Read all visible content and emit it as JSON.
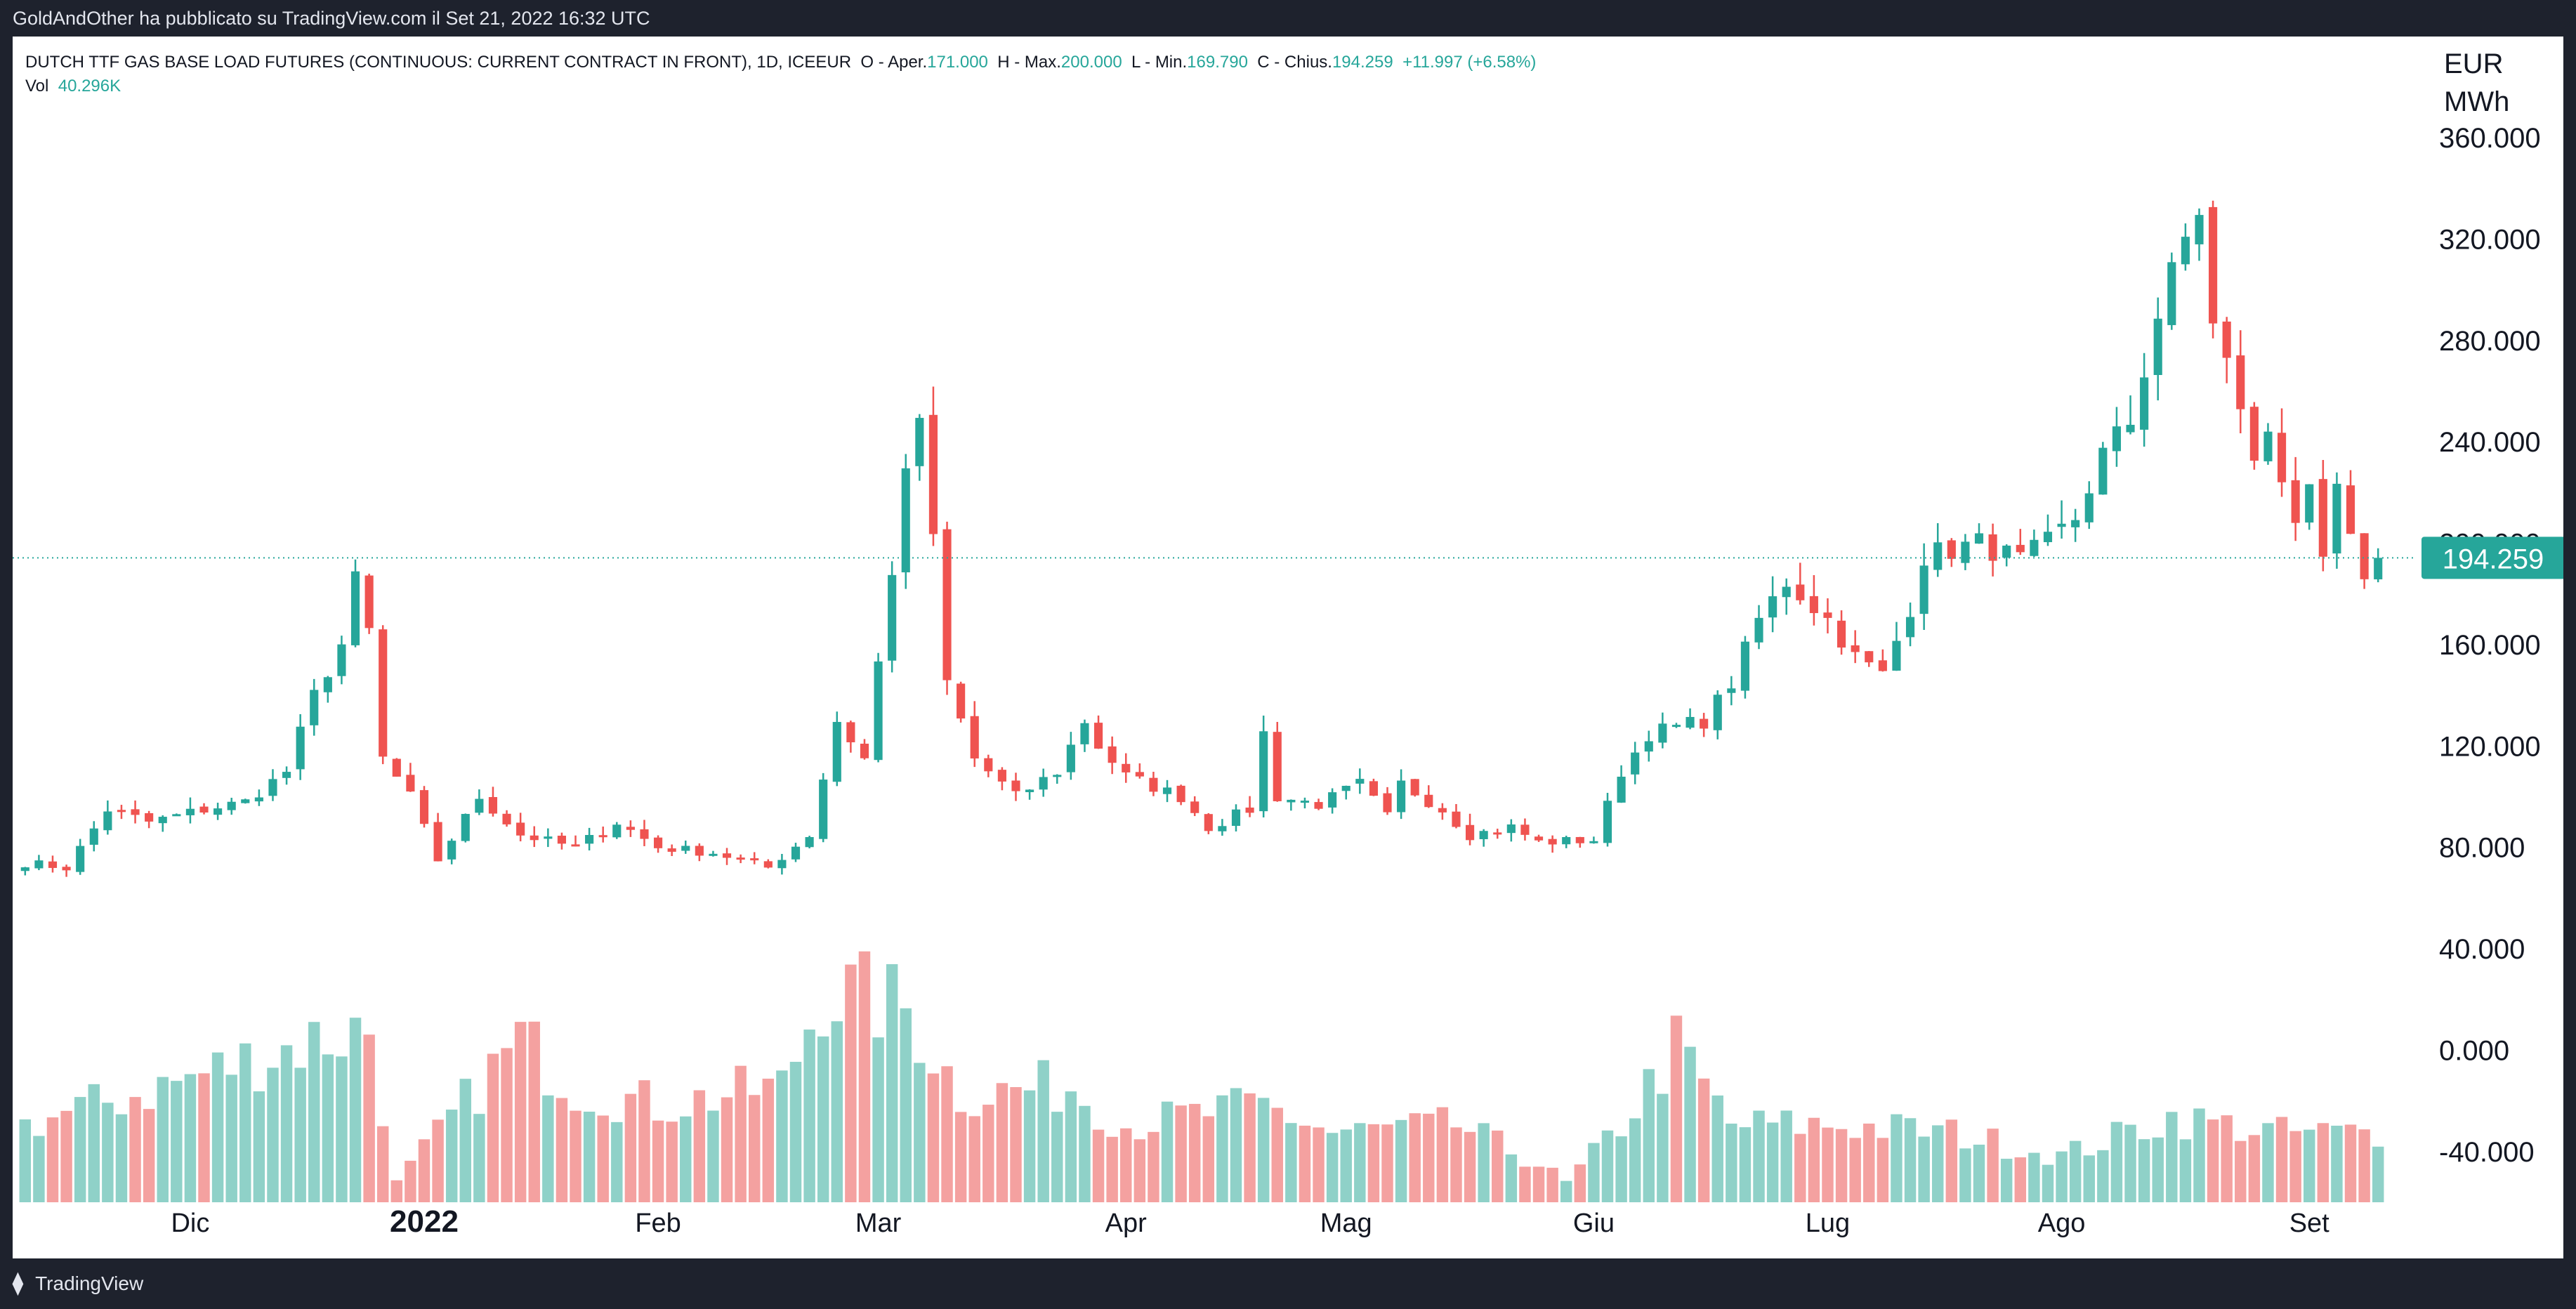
{
  "header": {
    "published_by": "GoldAndOther ha pubblicato su TradingView.com il Set 21, 2022 16:32 UTC"
  },
  "footer": {
    "logo_glyph": "⧫",
    "brand": "TradingView"
  },
  "legend": {
    "symbol": "DUTCH TTF GAS BASE LOAD FUTURES (CONTINUOUS: CURRENT CONTRACT IN FRONT), 1D, ICEEUR",
    "open_label": "O - Aper.",
    "open_value": "171.000",
    "high_label": "H - Max.",
    "high_value": "200.000",
    "low_label": "L - Min.",
    "low_value": "169.790",
    "close_label": "C - Chius.",
    "close_value": "194.259",
    "change": "+11.997 (+6.58%)",
    "vol_label": "Vol",
    "vol_value": "40.296K"
  },
  "axis": {
    "currency": "EUR",
    "unit": "MWh"
  },
  "colors": {
    "up": "#26a69a",
    "down": "#ef5350",
    "vol_up": "#8fd1c8",
    "vol_down": "#f4a1a0",
    "price_badge": "#26a69a"
  },
  "chart_data": {
    "type": "candlestick",
    "interval": "1D",
    "last_price": "194.259",
    "last_price_value": 194.259,
    "y_axis": {
      "ticks": [
        -40,
        0,
        40,
        80,
        120,
        160,
        200,
        240,
        280,
        320,
        360
      ],
      "tick_labels": [
        "-40.000",
        "0.000",
        "40.000",
        "80.000",
        "120.000",
        "160.000",
        "200.000",
        "240.000",
        "280.000",
        "320.000",
        "360.000"
      ],
      "range": [
        -60,
        375
      ]
    },
    "x_axis": {
      "labels": [
        {
          "label": "Dic",
          "index": 12,
          "bold": false
        },
        {
          "label": "2022",
          "index": 29,
          "bold": true
        },
        {
          "label": "Feb",
          "index": 46,
          "bold": false
        },
        {
          "label": "Mar",
          "index": 62,
          "bold": false
        },
        {
          "label": "Apr",
          "index": 80,
          "bold": false
        },
        {
          "label": "Mag",
          "index": 96,
          "bold": false
        },
        {
          "label": "Giu",
          "index": 114,
          "bold": false
        },
        {
          "label": "Lug",
          "index": 131,
          "bold": false
        },
        {
          "label": "Ago",
          "index": 148,
          "bold": false
        },
        {
          "label": "Set",
          "index": 166,
          "bold": false
        }
      ]
    },
    "volume_range": [
      0,
      60
    ],
    "keypoints": [
      {
        "i": 0,
        "p": 74
      },
      {
        "i": 3,
        "p": 72
      },
      {
        "i": 6,
        "p": 95
      },
      {
        "i": 9,
        "p": 90
      },
      {
        "i": 13,
        "p": 95
      },
      {
        "i": 16,
        "p": 98
      },
      {
        "i": 19,
        "p": 110
      },
      {
        "i": 21,
        "p": 140
      },
      {
        "i": 23,
        "p": 160
      },
      {
        "i": 24,
        "p": 185
      },
      {
        "i": 25,
        "p": 165
      },
      {
        "i": 26,
        "p": 115
      },
      {
        "i": 28,
        "p": 100
      },
      {
        "i": 30,
        "p": 75
      },
      {
        "i": 33,
        "p": 100
      },
      {
        "i": 36,
        "p": 85
      },
      {
        "i": 40,
        "p": 80
      },
      {
        "i": 43,
        "p": 90
      },
      {
        "i": 46,
        "p": 80
      },
      {
        "i": 50,
        "p": 78
      },
      {
        "i": 54,
        "p": 72
      },
      {
        "i": 57,
        "p": 85
      },
      {
        "i": 59,
        "p": 130
      },
      {
        "i": 61,
        "p": 115
      },
      {
        "i": 63,
        "p": 190
      },
      {
        "i": 64,
        "p": 225
      },
      {
        "i": 65,
        "p": 250
      },
      {
        "i": 66,
        "p": 200
      },
      {
        "i": 67,
        "p": 145
      },
      {
        "i": 69,
        "p": 115
      },
      {
        "i": 72,
        "p": 100
      },
      {
        "i": 75,
        "p": 110
      },
      {
        "i": 77,
        "p": 130
      },
      {
        "i": 78,
        "p": 120
      },
      {
        "i": 80,
        "p": 108
      },
      {
        "i": 84,
        "p": 100
      },
      {
        "i": 86,
        "p": 88
      },
      {
        "i": 89,
        "p": 95
      },
      {
        "i": 90,
        "p": 125
      },
      {
        "i": 91,
        "p": 100
      },
      {
        "i": 94,
        "p": 97
      },
      {
        "i": 97,
        "p": 105
      },
      {
        "i": 99,
        "p": 92
      },
      {
        "i": 100,
        "p": 105
      },
      {
        "i": 103,
        "p": 95
      },
      {
        "i": 105,
        "p": 85
      },
      {
        "i": 108,
        "p": 88
      },
      {
        "i": 110,
        "p": 82
      },
      {
        "i": 114,
        "p": 83
      },
      {
        "i": 116,
        "p": 110
      },
      {
        "i": 118,
        "p": 125
      },
      {
        "i": 122,
        "p": 130
      },
      {
        "i": 124,
        "p": 145
      },
      {
        "i": 126,
        "p": 170
      },
      {
        "i": 128,
        "p": 185
      },
      {
        "i": 131,
        "p": 170
      },
      {
        "i": 133,
        "p": 155
      },
      {
        "i": 135,
        "p": 148
      },
      {
        "i": 137,
        "p": 175
      },
      {
        "i": 138,
        "p": 195
      },
      {
        "i": 142,
        "p": 200
      },
      {
        "i": 145,
        "p": 193
      },
      {
        "i": 147,
        "p": 200
      },
      {
        "i": 149,
        "p": 210
      },
      {
        "i": 151,
        "p": 235
      },
      {
        "i": 153,
        "p": 248
      },
      {
        "i": 155,
        "p": 290
      },
      {
        "i": 157,
        "p": 320
      },
      {
        "i": 158,
        "p": 332
      },
      {
        "i": 159,
        "p": 285
      },
      {
        "i": 161,
        "p": 255
      },
      {
        "i": 162,
        "p": 230
      },
      {
        "i": 163,
        "p": 245
      },
      {
        "i": 165,
        "p": 210
      },
      {
        "i": 166,
        "p": 218
      },
      {
        "i": 167,
        "p": 190
      },
      {
        "i": 168,
        "p": 222
      },
      {
        "i": 169,
        "p": 200
      },
      {
        "i": 170,
        "p": 182
      },
      {
        "i": 171,
        "p": 194
      }
    ],
    "volume_keypoints": [
      {
        "i": 0,
        "v": 20
      },
      {
        "i": 10,
        "v": 30
      },
      {
        "i": 21,
        "v": 42
      },
      {
        "i": 25,
        "v": 45
      },
      {
        "i": 27,
        "v": 5
      },
      {
        "i": 31,
        "v": 22
      },
      {
        "i": 36,
        "v": 42
      },
      {
        "i": 40,
        "v": 30
      },
      {
        "i": 46,
        "v": 25
      },
      {
        "i": 55,
        "v": 30
      },
      {
        "i": 58,
        "v": 55
      },
      {
        "i": 64,
        "v": 50
      },
      {
        "i": 68,
        "v": 28
      },
      {
        "i": 76,
        "v": 30
      },
      {
        "i": 80,
        "v": 20
      },
      {
        "i": 90,
        "v": 25
      },
      {
        "i": 95,
        "v": 18
      },
      {
        "i": 104,
        "v": 20
      },
      {
        "i": 110,
        "v": 10
      },
      {
        "i": 112,
        "v": 5
      },
      {
        "i": 116,
        "v": 20
      },
      {
        "i": 120,
        "v": 40
      },
      {
        "i": 124,
        "v": 20
      },
      {
        "i": 132,
        "v": 20
      },
      {
        "i": 140,
        "v": 18
      },
      {
        "i": 148,
        "v": 12
      },
      {
        "i": 156,
        "v": 22
      },
      {
        "i": 164,
        "v": 18
      },
      {
        "i": 171,
        "v": 18
      }
    ]
  }
}
